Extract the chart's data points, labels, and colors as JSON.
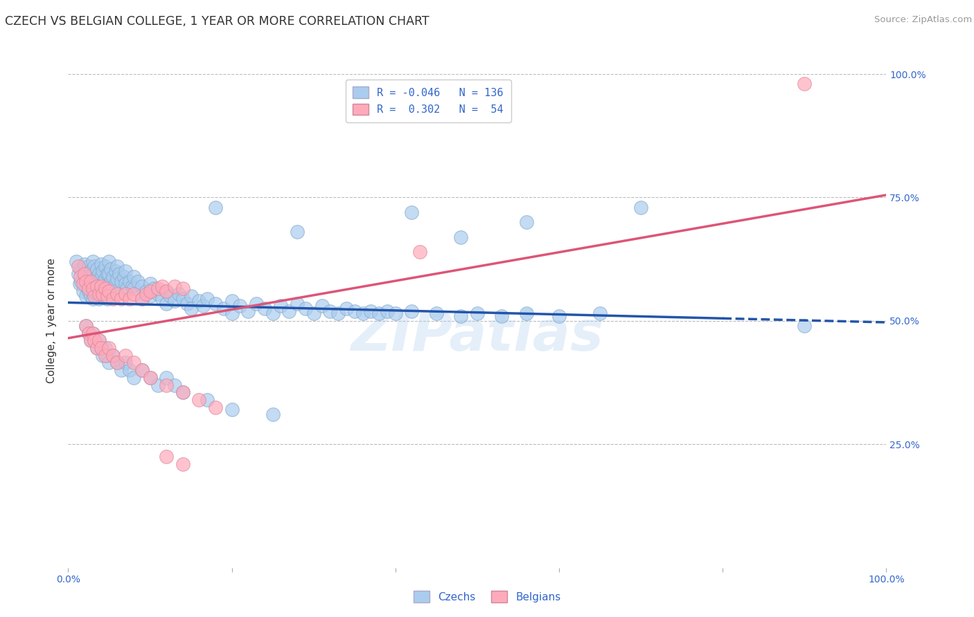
{
  "title": "CZECH VS BELGIAN COLLEGE, 1 YEAR OR MORE CORRELATION CHART",
  "source_text": "Source: ZipAtlas.com",
  "ylabel": "College, 1 year or more",
  "xlim": [
    0.0,
    1.0
  ],
  "ylim": [
    0.0,
    1.0
  ],
  "series": [
    {
      "name": "Czechs",
      "color": "#aaccee",
      "edge_color": "#88aacc",
      "trend_color": "#2255aa",
      "trend_dashed_start": 0.8
    },
    {
      "name": "Belgians",
      "color": "#ffaabb",
      "edge_color": "#dd8899",
      "trend_color": "#dd5577"
    }
  ],
  "watermark": "ZIPatlas",
  "background_color": "#ffffff",
  "grid_color": "#bbbbbb",
  "title_color": "#333333",
  "axis_label_color": "#3366cc",
  "czech_trend_y_start": 0.537,
  "czech_trend_y_end": 0.497,
  "belgian_trend_y_start": 0.465,
  "belgian_trend_y_end": 0.755,
  "czech_points": [
    [
      0.01,
      0.62
    ],
    [
      0.012,
      0.595
    ],
    [
      0.014,
      0.575
    ],
    [
      0.015,
      0.605
    ],
    [
      0.016,
      0.58
    ],
    [
      0.018,
      0.56
    ],
    [
      0.02,
      0.615
    ],
    [
      0.02,
      0.59
    ],
    [
      0.022,
      0.57
    ],
    [
      0.022,
      0.55
    ],
    [
      0.025,
      0.61
    ],
    [
      0.025,
      0.585
    ],
    [
      0.025,
      0.56
    ],
    [
      0.028,
      0.6
    ],
    [
      0.028,
      0.575
    ],
    [
      0.028,
      0.55
    ],
    [
      0.03,
      0.62
    ],
    [
      0.03,
      0.595
    ],
    [
      0.03,
      0.57
    ],
    [
      0.03,
      0.545
    ],
    [
      0.032,
      0.61
    ],
    [
      0.032,
      0.585
    ],
    [
      0.032,
      0.56
    ],
    [
      0.035,
      0.605
    ],
    [
      0.035,
      0.58
    ],
    [
      0.035,
      0.555
    ],
    [
      0.038,
      0.595
    ],
    [
      0.038,
      0.57
    ],
    [
      0.038,
      0.545
    ],
    [
      0.04,
      0.615
    ],
    [
      0.04,
      0.59
    ],
    [
      0.04,
      0.565
    ],
    [
      0.042,
      0.6
    ],
    [
      0.042,
      0.575
    ],
    [
      0.042,
      0.55
    ],
    [
      0.045,
      0.61
    ],
    [
      0.045,
      0.585
    ],
    [
      0.045,
      0.56
    ],
    [
      0.048,
      0.595
    ],
    [
      0.048,
      0.57
    ],
    [
      0.048,
      0.545
    ],
    [
      0.05,
      0.62
    ],
    [
      0.05,
      0.595
    ],
    [
      0.05,
      0.57
    ],
    [
      0.052,
      0.605
    ],
    [
      0.052,
      0.58
    ],
    [
      0.055,
      0.59
    ],
    [
      0.055,
      0.565
    ],
    [
      0.058,
      0.6
    ],
    [
      0.058,
      0.575
    ],
    [
      0.06,
      0.61
    ],
    [
      0.06,
      0.585
    ],
    [
      0.062,
      0.595
    ],
    [
      0.065,
      0.58
    ],
    [
      0.068,
      0.59
    ],
    [
      0.07,
      0.6
    ],
    [
      0.07,
      0.575
    ],
    [
      0.072,
      0.565
    ],
    [
      0.075,
      0.58
    ],
    [
      0.078,
      0.57
    ],
    [
      0.08,
      0.59
    ],
    [
      0.08,
      0.565
    ],
    [
      0.085,
      0.58
    ],
    [
      0.09,
      0.57
    ],
    [
      0.09,
      0.545
    ],
    [
      0.095,
      0.56
    ],
    [
      0.1,
      0.575
    ],
    [
      0.1,
      0.55
    ],
    [
      0.105,
      0.565
    ],
    [
      0.11,
      0.555
    ],
    [
      0.115,
      0.545
    ],
    [
      0.12,
      0.56
    ],
    [
      0.12,
      0.535
    ],
    [
      0.125,
      0.55
    ],
    [
      0.13,
      0.54
    ],
    [
      0.135,
      0.555
    ],
    [
      0.14,
      0.545
    ],
    [
      0.145,
      0.535
    ],
    [
      0.15,
      0.55
    ],
    [
      0.15,
      0.525
    ],
    [
      0.16,
      0.54
    ],
    [
      0.165,
      0.53
    ],
    [
      0.17,
      0.545
    ],
    [
      0.18,
      0.535
    ],
    [
      0.19,
      0.525
    ],
    [
      0.2,
      0.54
    ],
    [
      0.2,
      0.515
    ],
    [
      0.21,
      0.53
    ],
    [
      0.22,
      0.52
    ],
    [
      0.23,
      0.535
    ],
    [
      0.24,
      0.525
    ],
    [
      0.25,
      0.515
    ],
    [
      0.26,
      0.53
    ],
    [
      0.27,
      0.52
    ],
    [
      0.28,
      0.535
    ],
    [
      0.29,
      0.525
    ],
    [
      0.3,
      0.515
    ],
    [
      0.31,
      0.53
    ],
    [
      0.32,
      0.52
    ],
    [
      0.33,
      0.515
    ],
    [
      0.34,
      0.525
    ],
    [
      0.35,
      0.52
    ],
    [
      0.36,
      0.515
    ],
    [
      0.37,
      0.52
    ],
    [
      0.38,
      0.515
    ],
    [
      0.39,
      0.52
    ],
    [
      0.4,
      0.515
    ],
    [
      0.42,
      0.52
    ],
    [
      0.45,
      0.515
    ],
    [
      0.48,
      0.51
    ],
    [
      0.5,
      0.515
    ],
    [
      0.53,
      0.51
    ],
    [
      0.56,
      0.515
    ],
    [
      0.6,
      0.51
    ],
    [
      0.65,
      0.515
    ],
    [
      0.022,
      0.49
    ],
    [
      0.025,
      0.475
    ],
    [
      0.028,
      0.46
    ],
    [
      0.03,
      0.475
    ],
    [
      0.032,
      0.46
    ],
    [
      0.035,
      0.445
    ],
    [
      0.038,
      0.46
    ],
    [
      0.04,
      0.445
    ],
    [
      0.042,
      0.43
    ],
    [
      0.045,
      0.445
    ],
    [
      0.048,
      0.43
    ],
    [
      0.05,
      0.415
    ],
    [
      0.055,
      0.43
    ],
    [
      0.06,
      0.415
    ],
    [
      0.065,
      0.4
    ],
    [
      0.07,
      0.415
    ],
    [
      0.075,
      0.4
    ],
    [
      0.08,
      0.385
    ],
    [
      0.09,
      0.4
    ],
    [
      0.1,
      0.385
    ],
    [
      0.11,
      0.37
    ],
    [
      0.12,
      0.385
    ],
    [
      0.13,
      0.37
    ],
    [
      0.14,
      0.355
    ],
    [
      0.17,
      0.34
    ],
    [
      0.2,
      0.32
    ],
    [
      0.25,
      0.31
    ],
    [
      0.18,
      0.73
    ],
    [
      0.42,
      0.72
    ],
    [
      0.56,
      0.7
    ],
    [
      0.7,
      0.73
    ],
    [
      0.28,
      0.68
    ],
    [
      0.48,
      0.67
    ],
    [
      0.9,
      0.49
    ]
  ],
  "belgian_points": [
    [
      0.012,
      0.61
    ],
    [
      0.015,
      0.59
    ],
    [
      0.018,
      0.575
    ],
    [
      0.02,
      0.595
    ],
    [
      0.022,
      0.58
    ],
    [
      0.025,
      0.565
    ],
    [
      0.028,
      0.58
    ],
    [
      0.03,
      0.565
    ],
    [
      0.032,
      0.55
    ],
    [
      0.035,
      0.57
    ],
    [
      0.038,
      0.555
    ],
    [
      0.04,
      0.57
    ],
    [
      0.042,
      0.555
    ],
    [
      0.045,
      0.565
    ],
    [
      0.048,
      0.55
    ],
    [
      0.05,
      0.56
    ],
    [
      0.055,
      0.545
    ],
    [
      0.06,
      0.555
    ],
    [
      0.065,
      0.545
    ],
    [
      0.07,
      0.555
    ],
    [
      0.075,
      0.545
    ],
    [
      0.08,
      0.555
    ],
    [
      0.09,
      0.545
    ],
    [
      0.095,
      0.555
    ],
    [
      0.1,
      0.56
    ],
    [
      0.11,
      0.565
    ],
    [
      0.115,
      0.57
    ],
    [
      0.12,
      0.56
    ],
    [
      0.13,
      0.57
    ],
    [
      0.14,
      0.565
    ],
    [
      0.022,
      0.49
    ],
    [
      0.025,
      0.475
    ],
    [
      0.028,
      0.46
    ],
    [
      0.03,
      0.475
    ],
    [
      0.032,
      0.46
    ],
    [
      0.035,
      0.445
    ],
    [
      0.038,
      0.46
    ],
    [
      0.04,
      0.445
    ],
    [
      0.045,
      0.43
    ],
    [
      0.05,
      0.445
    ],
    [
      0.055,
      0.43
    ],
    [
      0.06,
      0.415
    ],
    [
      0.07,
      0.43
    ],
    [
      0.08,
      0.415
    ],
    [
      0.09,
      0.4
    ],
    [
      0.1,
      0.385
    ],
    [
      0.12,
      0.37
    ],
    [
      0.14,
      0.355
    ],
    [
      0.16,
      0.34
    ],
    [
      0.18,
      0.325
    ],
    [
      0.12,
      0.225
    ],
    [
      0.14,
      0.21
    ],
    [
      0.43,
      0.64
    ],
    [
      0.9,
      0.98
    ]
  ]
}
